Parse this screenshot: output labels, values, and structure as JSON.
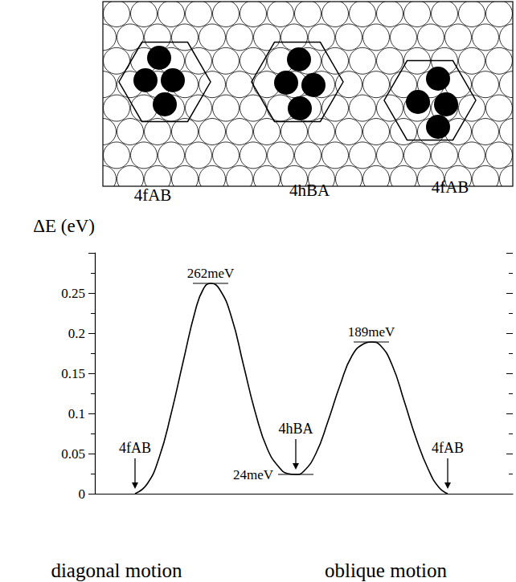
{
  "chart_data": {
    "type": "line",
    "ylabel": "ΔE (eV)",
    "xlabels": [
      "diagonal motion",
      "oblique motion"
    ],
    "x": [
      50,
      65,
      80,
      95,
      110,
      125,
      135,
      144,
      155,
      170,
      185,
      200,
      215,
      230,
      240,
      250,
      260,
      275,
      290,
      305,
      320,
      335,
      344,
      355,
      370,
      385,
      400,
      415,
      428,
      439
    ],
    "values": [
      0,
      0.012,
      0.045,
      0.1,
      0.165,
      0.228,
      0.255,
      0.262,
      0.255,
      0.22,
      0.16,
      0.1,
      0.055,
      0.032,
      0.025,
      0.024,
      0.028,
      0.05,
      0.09,
      0.135,
      0.172,
      0.187,
      0.189,
      0.185,
      0.16,
      0.115,
      0.068,
      0.03,
      0.008,
      0
    ],
    "color": "#000000",
    "line_style": "solid",
    "xlim": [
      0,
      520
    ],
    "xticks": [],
    "ylim": [
      0,
      0.3
    ],
    "yticks": [
      0,
      0.05,
      0.1,
      0.15,
      0.2,
      0.25
    ],
    "grid": false,
    "tick_labels": "y",
    "annotations": [
      {
        "type": "level",
        "text": "262meV",
        "x": 144,
        "y": 0.262
      },
      {
        "type": "level",
        "text": "24meV",
        "x": 250,
        "y": 0.024
      },
      {
        "type": "level",
        "text": "189meV",
        "x": 344,
        "y": 0.189
      },
      {
        "type": "arrow",
        "text": "4fAB",
        "x": 50,
        "y": 0
      },
      {
        "type": "arrow",
        "text": "4hBA",
        "x": 250,
        "y": 0.024
      },
      {
        "type": "arrow",
        "text": "4fAB",
        "x": 439,
        "y": 0
      }
    ]
  },
  "diagram": {
    "configurations": [
      "4fAB",
      "4hBA",
      "4fAB"
    ]
  }
}
